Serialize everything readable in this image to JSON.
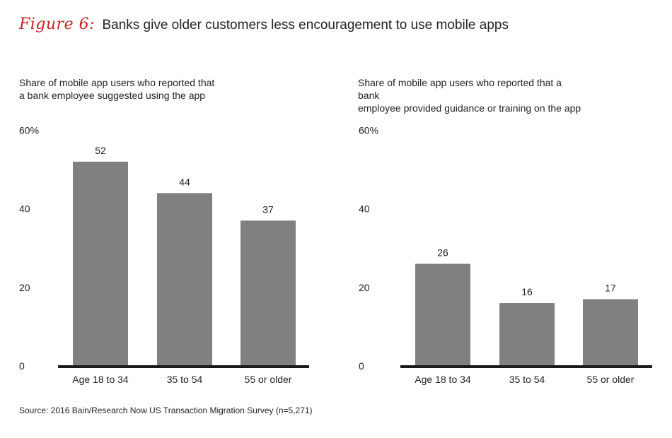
{
  "figure": {
    "label": "Figure 6:",
    "title": "Banks give older customers less encouragement to use mobile apps",
    "bar_color": "#808083",
    "accent_color": "#cc1f1f",
    "baseline_color": "#1a1a1a"
  },
  "source": "Source: 2016 Bain/Research Now US Transaction Migration Survey (n=5,271)",
  "chart_data": [
    {
      "type": "bar",
      "title": "Share of mobile app users who reported that a bank employee suggested using the app",
      "title_lines": [
        "Share of mobile app users who reported that",
        "a bank employee suggested using the app"
      ],
      "categories": [
        "Age 18 to 34",
        "35 to 54",
        "55 or older"
      ],
      "values": [
        52,
        44,
        37
      ],
      "value_labels": [
        "52",
        "44",
        "37"
      ],
      "yticks": [
        "0",
        "20",
        "40",
        "60%"
      ],
      "ylim": [
        0,
        60
      ],
      "grid": false,
      "legend": "none"
    },
    {
      "type": "bar",
      "title": "Share of mobile app users who reported that a bank employee provided guidance or training on the app",
      "title_lines": [
        "Share of mobile app users who reported that a bank",
        "employee provided guidance or training on the app"
      ],
      "categories": [
        "Age 18 to 34",
        "35 to 54",
        "55 or older"
      ],
      "values": [
        26,
        16,
        17
      ],
      "value_labels": [
        "26",
        "16",
        "17"
      ],
      "yticks": [
        "0",
        "20",
        "40",
        "60%"
      ],
      "ylim": [
        0,
        60
      ],
      "grid": false,
      "legend": "none"
    }
  ]
}
